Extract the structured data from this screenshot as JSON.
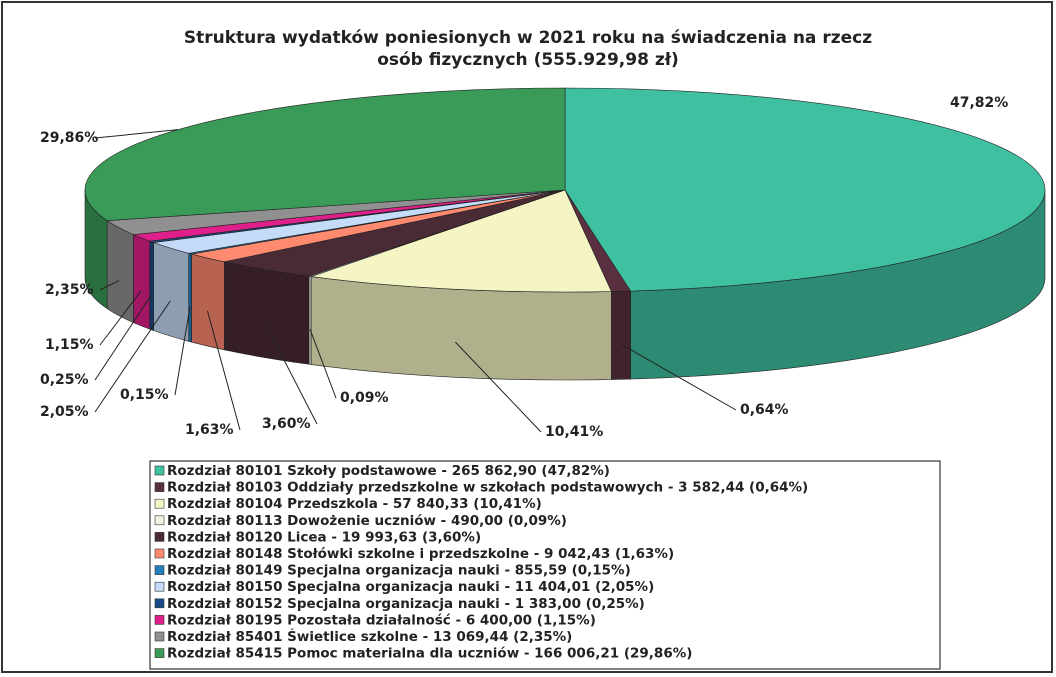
{
  "chart_data": {
    "type": "pie",
    "title": [
      "Struktura wydatków poniesionych w 2021 roku na świadczenia na rzecz",
      "osób fizycznych (555.929,98 zł)"
    ],
    "categories": [
      "Rozdział 80101 Szkoły podstawowe - 265 862,90 (47,82%)",
      "Rozdział 80103 Oddziały przedszkolne w szkołach podstawowych - 3 582,44 (0,64%)",
      "Rozdział 80104 Przedszkola - 57 840,33 (10,41%)",
      "Rozdział 80113 Dowożenie uczniów - 490,00 (0,09%)",
      "Rozdział 80120 Licea - 19 993,63 (3,60%)",
      "Rozdział 80148 Stołówki szkolne i przedszkolne - 9 042,43 (1,63%)",
      "Rozdział 80149 Specjalna organizacja nauki - 855,59 (0,15%)",
      "Rozdział 80150 Specjalna organizacja nauki - 11 404,01 (2,05%)",
      "Rozdział 80152 Specjalna organizacja nauki - 1 383,00 (0,25%)",
      "Rozdział 80195 Pozostała działalność - 6 400,00 (1,15%)",
      "Rozdział 85401 Świetlice szkolne - 13 069,44 (2,35%)",
      "Rozdział 85415 Pomoc materialna dla uczniów - 166 006,21 (29,86%)"
    ],
    "values": [
      47.82,
      0.64,
      10.41,
      0.09,
      3.6,
      1.63,
      0.15,
      2.05,
      0.25,
      1.15,
      2.35,
      29.86
    ],
    "value_labels": [
      "47,82%",
      "0,64%",
      "10,41%",
      "0,09%",
      "3,60%",
      "1,63%",
      "0,15%",
      "2,05%",
      "0,25%",
      "1,15%",
      "2,35%",
      "29,86%"
    ],
    "colors": [
      "#3fc0a0",
      "#5a3040",
      "#f4f4c4",
      "#f2f0e2",
      "#4a2a35",
      "#ff8a70",
      "#2080c0",
      "#c4dcf8",
      "#1a4a8a",
      "#e0208a",
      "#909090",
      "#3a9a58"
    ]
  }
}
